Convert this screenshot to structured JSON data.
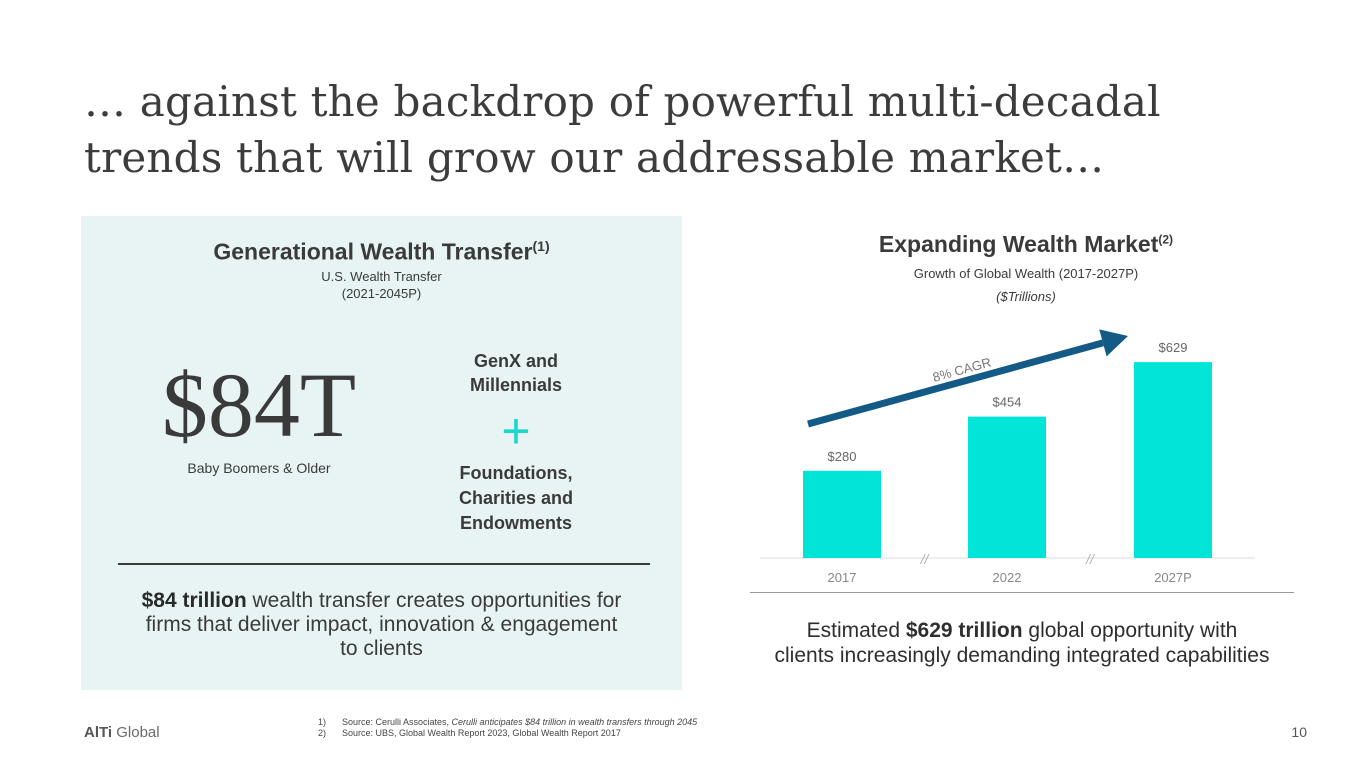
{
  "title": {
    "line1": "… against the backdrop of powerful multi-decadal",
    "line2": "trends that will grow our addressable market…"
  },
  "left_panel": {
    "heading": "Generational Wealth Transfer",
    "heading_ref": "(1)",
    "subtitle_line1": "U.S. Wealth Transfer",
    "subtitle_line2": "(2021-2045P)",
    "big_amount": "$84T",
    "big_amount_caption": "Baby Boomers & Older",
    "genx_line1": "GenX and",
    "genx_line2": "Millennials",
    "plus_symbol": "+",
    "foundations_line1": "Foundations,",
    "foundations_line2": "Charities and",
    "foundations_line3": "Endowments",
    "statement_bold": "$84 trillion",
    "statement_line1_rest": " wealth transfer creates opportunities for",
    "statement_line2": "firms that deliver impact, innovation & engagement",
    "statement_line3": "to clients"
  },
  "right_panel": {
    "heading": "Expanding Wealth Market",
    "heading_ref": "(2)",
    "subtitle": "Growth of Global Wealth (2017-2027P)",
    "unit": "($Trillions)",
    "statement_pre": "Estimated ",
    "statement_bold": "$629 trillion",
    "statement_line1_rest": " global opportunity with",
    "statement_line2": "clients increasingly demanding integrated capabilities"
  },
  "chart_data": {
    "type": "bar",
    "categories": [
      "2017",
      "2022",
      "2027P"
    ],
    "values": [
      280,
      454,
      629
    ],
    "value_labels": [
      "$280",
      "$454",
      "$629"
    ],
    "ylim": [
      0,
      700
    ],
    "annotation": "8% CAGR",
    "axis_break_marks": "//",
    "bar_color": "#00e5d8",
    "arrow_color": "#135a86",
    "grid": false
  },
  "footer": {
    "brand_bold": "AlTi",
    "brand_rest": " Global",
    "footnote1_num": "1)",
    "footnote1_text": "Source: Cerulli Associates, ",
    "footnote1_italic": "Cerulli anticipates $84 trillion in wealth transfers through 2045",
    "footnote2_num": "2)",
    "footnote2_text": "Source: UBS, Global Wealth Report 2023, Global Wealth Report 2017",
    "page_number": "10"
  },
  "colors": {
    "accent": "#1ed6cc",
    "panel_bg": "#e8f4f4",
    "text": "#3a3a3a"
  }
}
